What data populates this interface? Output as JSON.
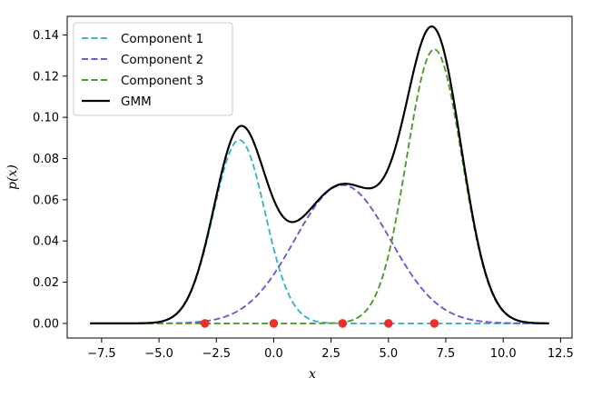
{
  "chart_data": {
    "type": "line",
    "xlabel": "x",
    "ylabel": "p(x)",
    "xlim": [
      -9.0,
      13.0
    ],
    "ylim": [
      -0.0071,
      0.149
    ],
    "x_ticks": [
      -7.5,
      -5.0,
      -2.5,
      0.0,
      2.5,
      5.0,
      7.5,
      10.0,
      12.5
    ],
    "x_tick_labels": [
      "−7.5",
      "−5.0",
      "−2.5",
      "0.0",
      "2.5",
      "5.0",
      "7.5",
      "10.0",
      "12.5"
    ],
    "y_ticks": [
      0.0,
      0.02,
      0.04,
      0.06,
      0.08,
      0.1,
      0.12,
      0.14
    ],
    "y_tick_labels": [
      "0.00",
      "0.02",
      "0.04",
      "0.06",
      "0.08",
      "0.10",
      "0.12",
      "0.14"
    ],
    "grid": false,
    "legend_position": "top-left",
    "x_range": [
      -8,
      12
    ],
    "series": [
      {
        "name": "Component 1",
        "style": "dashed",
        "color": "#3bb3c8",
        "component": {
          "weight": 0.25,
          "mean": -1.5,
          "std": 1.12
        }
      },
      {
        "name": "Component 2",
        "style": "dashed",
        "color": "#6a5acd",
        "component": {
          "weight": 0.35,
          "mean": 3.0,
          "std": 2.08
        }
      },
      {
        "name": "Component 3",
        "style": "dashed",
        "color": "#4f9a2a",
        "component": {
          "weight": 0.4,
          "mean": 7.0,
          "std": 1.2
        }
      },
      {
        "name": "GMM",
        "style": "solid",
        "color": "#000000"
      }
    ],
    "scatter_points": {
      "color": "#e8312b",
      "points": [
        [
          -3,
          0
        ],
        [
          0,
          0
        ],
        [
          3,
          0
        ],
        [
          5,
          0
        ],
        [
          7,
          0
        ]
      ]
    }
  }
}
